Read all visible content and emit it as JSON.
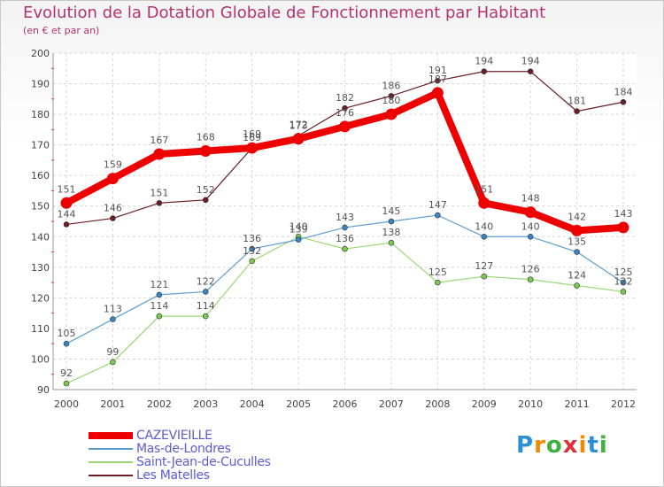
{
  "header": {
    "title": "Evolution de la Dotation Globale de Fonctionnement par Habitant",
    "subtitle": "(en € et par an)"
  },
  "logo": {
    "text": "Proxiti",
    "letters": [
      "P",
      "r",
      "o",
      "x",
      "i",
      "t",
      "i"
    ],
    "colors": [
      "#2b8fd6",
      "#f08a00",
      "#40b040",
      "#e0303a",
      "#f08a00",
      "#2b8fd6",
      "#40b040"
    ]
  },
  "chart_data": {
    "type": "line",
    "x": [
      "2000",
      "2001",
      "2002",
      "2003",
      "2004",
      "2005",
      "2006",
      "2007",
      "2008",
      "2009",
      "2010",
      "2011",
      "2012"
    ],
    "ylim": [
      90,
      200
    ],
    "yticks": [
      90,
      100,
      110,
      120,
      130,
      140,
      150,
      160,
      170,
      180,
      190,
      200
    ],
    "grid": true,
    "legend_position": "bottom-left",
    "series": [
      {
        "name": "Les Matelles",
        "color": "#6b1f26",
        "dotColor": "#6b1f26",
        "width": 1.2,
        "radius": 3,
        "values": [
          144,
          146,
          151,
          152,
          169,
          173,
          182,
          186,
          191,
          194,
          194,
          181,
          184
        ]
      },
      {
        "name": "Saint-Jean-de-Cuculles",
        "color": "#9ad873",
        "dotColor": "#7cc94f",
        "width": 1.2,
        "radius": 3,
        "values": [
          92,
          99,
          114,
          114,
          132,
          140,
          136,
          138,
          125,
          127,
          126,
          124,
          122
        ]
      },
      {
        "name": "Mas-de-Londres",
        "color": "#5b9fd0",
        "dotColor": "#3a86c4",
        "width": 1.2,
        "radius": 3,
        "values": [
          105,
          113,
          121,
          122,
          136,
          139,
          143,
          145,
          147,
          140,
          140,
          135,
          125
        ]
      },
      {
        "name": "CAZEVIEILLE",
        "color": "#ee0000",
        "dotColor": "#ee0000",
        "width": 8,
        "radius": 6.5,
        "values": [
          151,
          159,
          167,
          168,
          169,
          172,
          176,
          180,
          187,
          151,
          148,
          142,
          143
        ]
      }
    ],
    "legend_order": [
      "CAZEVIEILLE",
      "Mas-de-Londres",
      "Saint-Jean-de-Cuculles",
      "Les Matelles"
    ]
  }
}
